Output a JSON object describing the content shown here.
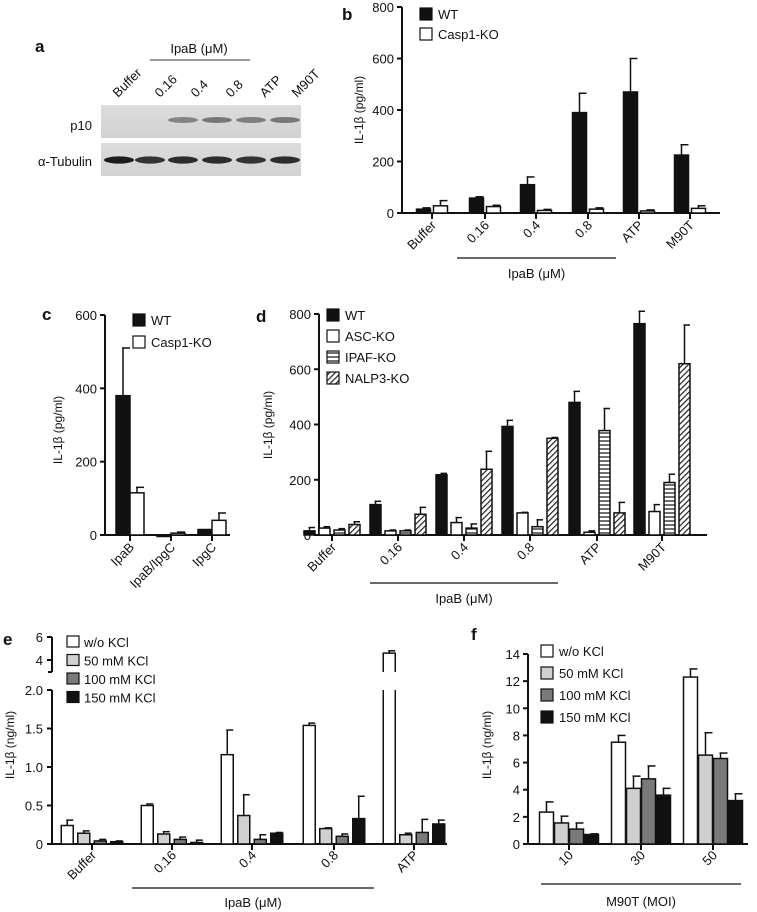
{
  "colors": {
    "black": "#111111",
    "white": "#ffffff",
    "light_gray": "#d0d0d0",
    "mid_gray": "#7a7a7a"
  },
  "panel_a": {
    "label": "a",
    "group_label": "IpaB  (μM)",
    "lanes": [
      "Buffer",
      "0.16",
      "0.4",
      "0.8",
      "ATP",
      "M90T"
    ],
    "rows": [
      "p10",
      "α-Tubulin"
    ],
    "p10_intensity": [
      0.05,
      0.08,
      0.55,
      0.65,
      0.6,
      0.65
    ],
    "tubulin_intensity": [
      0.95,
      0.8,
      0.85,
      0.85,
      0.8,
      0.85
    ]
  },
  "chart_data": [
    {
      "id": "b",
      "label": "b",
      "type": "bar",
      "ylabel": "IL-1β  (pg/ml)",
      "ylim": [
        0,
        800
      ],
      "yticks": [
        0,
        200,
        400,
        600,
        800
      ],
      "categories": [
        "Buffer",
        "0.16",
        "0.4",
        "0.8",
        "ATP",
        "M90T"
      ],
      "group_bracket": {
        "label": "IpaB (μM)",
        "from": 1,
        "to": 3
      },
      "legend_position": "top-left",
      "series": [
        {
          "name": "WT",
          "fill": "black",
          "values": [
            15,
            58,
            110,
            390,
            470,
            225
          ],
          "errors": [
            5,
            5,
            30,
            75,
            130,
            40
          ]
        },
        {
          "name": "Casp1-KO",
          "fill": "white",
          "values": [
            28,
            25,
            10,
            15,
            8,
            18
          ],
          "errors": [
            20,
            5,
            4,
            5,
            4,
            10
          ]
        }
      ]
    },
    {
      "id": "c",
      "label": "c",
      "type": "bar",
      "ylabel": "IL-1β  (pg/ml)",
      "ylim": [
        0,
        600
      ],
      "yticks": [
        0,
        200,
        400,
        600
      ],
      "categories": [
        "IpaB",
        "IpaB/IpgC",
        "IpgC"
      ],
      "legend_position": "top-right",
      "series": [
        {
          "name": "WT",
          "fill": "black",
          "values": [
            380,
            0,
            15
          ],
          "errors": [
            130,
            0,
            0
          ]
        },
        {
          "name": "Casp1-KO",
          "fill": "white",
          "values": [
            115,
            5,
            40
          ],
          "errors": [
            15,
            3,
            20
          ]
        }
      ]
    },
    {
      "id": "d",
      "label": "d",
      "type": "bar",
      "ylabel": "IL-1β   (pg/ml)",
      "ylim": [
        0,
        800
      ],
      "yticks": [
        0,
        200,
        400,
        600,
        800
      ],
      "categories": [
        "Buffer",
        "0.16",
        "0.4",
        "0.8",
        "ATP",
        "M90T"
      ],
      "group_bracket": {
        "label": "IpaB (μM)",
        "from": 1,
        "to": 3
      },
      "legend_position": "top-left",
      "series": [
        {
          "name": "WT",
          "fill": "black",
          "values": [
            15,
            110,
            218,
            393,
            480,
            765
          ],
          "errors": [
            12,
            12,
            5,
            22,
            40,
            45
          ]
        },
        {
          "name": "ASC-KO",
          "fill": "white",
          "values": [
            25,
            15,
            45,
            80,
            10,
            85
          ],
          "errors": [
            5,
            3,
            18,
            2,
            5,
            25
          ]
        },
        {
          "name": "IPAF-KO",
          "fill": "hstripe",
          "values": [
            18,
            15,
            25,
            30,
            378,
            190
          ],
          "errors": [
            5,
            3,
            15,
            25,
            80,
            30
          ]
        },
        {
          "name": "NALP3-KO",
          "fill": "diag",
          "values": [
            38,
            75,
            238,
            350,
            80,
            620
          ],
          "errors": [
            10,
            25,
            65,
            3,
            38,
            140
          ]
        }
      ]
    },
    {
      "id": "e",
      "label": "e",
      "type": "bar",
      "ylabel": "IL-1β  (ng/ml)",
      "ylim": [
        0,
        6
      ],
      "axis_break": [
        2.0,
        3.0
      ],
      "yticks_lower": [
        "0",
        "0.5",
        "1.0",
        "1.5",
        "2.0"
      ],
      "yticks_upper": [
        "4",
        "6"
      ],
      "categories": [
        "Buffer",
        "0.16",
        "0.4",
        "0.8",
        "ATP"
      ],
      "group_bracket": {
        "label": "IpaB (μM)",
        "from": 1,
        "to": 3
      },
      "legend_position": "top-left",
      "series": [
        {
          "name": "w/o KCl",
          "fill": "white",
          "values": [
            0.24,
            0.5,
            1.16,
            1.54,
            4.6
          ],
          "errors": [
            0.07,
            0.02,
            0.32,
            0.03,
            0.2
          ]
        },
        {
          "name": "50 mM KCl",
          "fill": "light_gray",
          "values": [
            0.14,
            0.13,
            0.37,
            0.2,
            0.12
          ],
          "errors": [
            0.03,
            0.03,
            0.27,
            0.01,
            0.02
          ]
        },
        {
          "name": "100 mM KCl",
          "fill": "mid_gray",
          "values": [
            0.04,
            0.06,
            0.06,
            0.1,
            0.15
          ],
          "errors": [
            0.02,
            0.03,
            0.06,
            0.03,
            0.17
          ]
        },
        {
          "name": "150 mM KCl",
          "fill": "black",
          "values": [
            0.03,
            0.02,
            0.14,
            0.33,
            0.26
          ],
          "errors": [
            0.01,
            0.03,
            0.01,
            0.29,
            0.05
          ]
        }
      ]
    },
    {
      "id": "f",
      "label": "f",
      "type": "bar",
      "ylabel": "IL-1β  (ng/ml)",
      "ylim": [
        0,
        14
      ],
      "yticks": [
        0,
        2,
        4,
        6,
        8,
        10,
        12,
        14
      ],
      "categories": [
        "10",
        "30",
        "50"
      ],
      "group_bracket": {
        "label": "M90T (MOI)",
        "from": 0,
        "to": 2
      },
      "legend_position": "top-left",
      "series": [
        {
          "name": "w/o KCl",
          "fill": "white",
          "values": [
            2.35,
            7.5,
            12.3
          ],
          "errors": [
            0.75,
            0.5,
            0.6
          ]
        },
        {
          "name": "50 mM KCl",
          "fill": "light_gray",
          "values": [
            1.55,
            4.1,
            6.55
          ],
          "errors": [
            0.5,
            0.9,
            1.65
          ]
        },
        {
          "name": "100 mM KCl",
          "fill": "mid_gray",
          "values": [
            1.1,
            4.8,
            6.3
          ],
          "errors": [
            0.45,
            0.95,
            0.4
          ]
        },
        {
          "name": "150 mM KCl",
          "fill": "black",
          "values": [
            0.7,
            3.6,
            3.2
          ],
          "errors": [
            0.05,
            0.5,
            0.5
          ]
        }
      ]
    }
  ]
}
